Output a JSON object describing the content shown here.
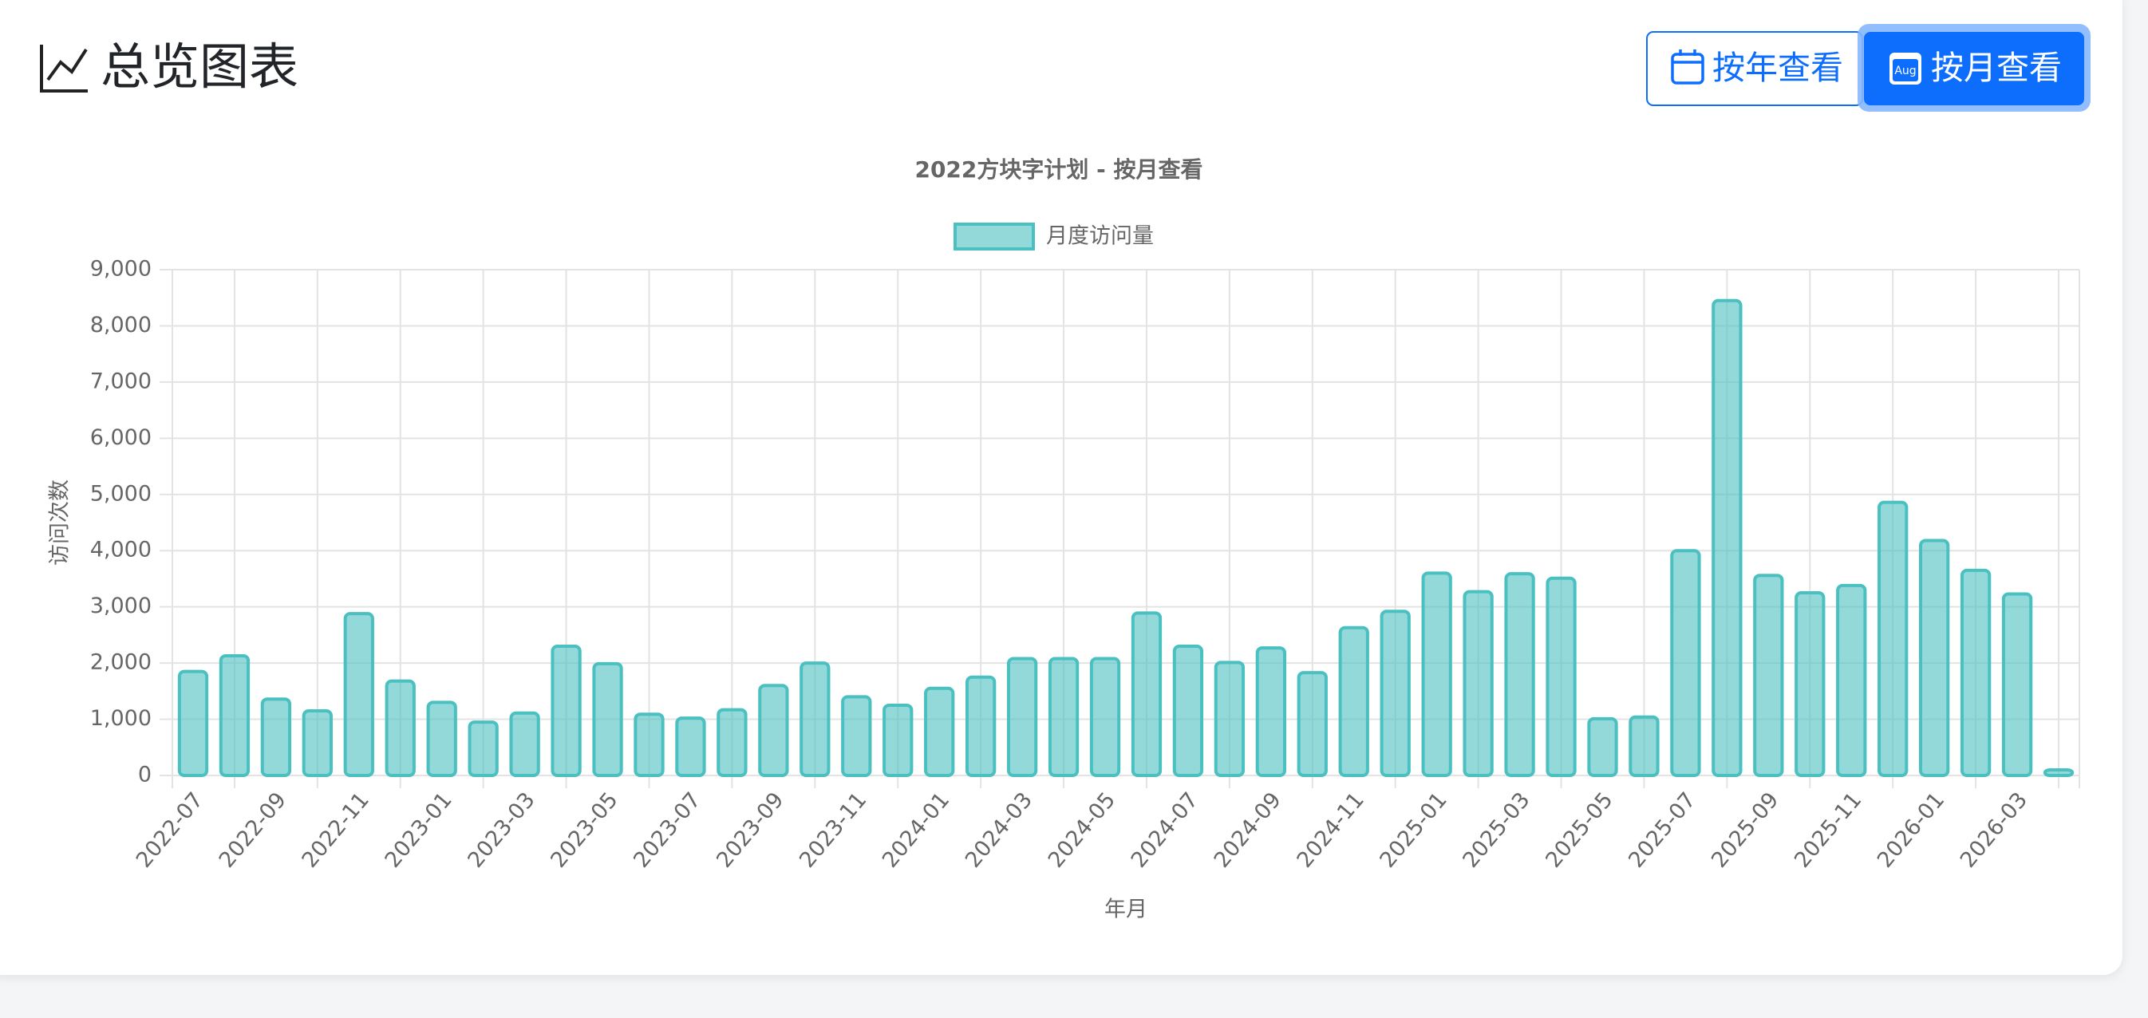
{
  "header": {
    "title": "总览图表",
    "buttons": [
      {
        "label": "按年查看"
      },
      {
        "label": "按月查看",
        "icon_text": "Aug"
      }
    ]
  },
  "chart_data": {
    "type": "bar",
    "title": "2022方块字计划 - 按月查看",
    "x_label": "年月",
    "y_label": "访问次数",
    "categories": [
      "2022-07",
      null,
      "2022-09",
      null,
      "2022-11",
      null,
      "2023-01",
      null,
      "2023-03",
      null,
      "2023-05",
      null,
      "2023-07",
      null,
      "2023-09",
      null,
      "2023-11",
      null,
      "2024-01",
      null,
      "2024-03",
      null,
      "2024-05",
      null,
      "2024-07",
      null,
      "2024-09",
      null,
      "2024-11",
      null,
      "2025-01",
      null,
      "2025-03",
      null,
      "2025-05",
      null,
      "2025-07",
      null,
      "2025-09",
      null,
      "2025-11",
      null,
      "2026-01",
      null,
      "2026-03",
      null
    ],
    "series": [
      {
        "name": "月度访问量",
        "color": "#4bc0c0",
        "values": [
          1850,
          2130,
          1360,
          1150,
          2880,
          1680,
          1300,
          950,
          1110,
          2300,
          1990,
          1090,
          1020,
          1170,
          1600,
          2000,
          1400,
          1250,
          1550,
          1750,
          2080,
          2080,
          2080,
          2890,
          2300,
          2010,
          2270,
          1830,
          2630,
          2920,
          3600,
          3270,
          3590,
          3510,
          1010,
          1040,
          4000,
          8450,
          3560,
          3250,
          3380,
          4860,
          4180,
          3650,
          3230,
          100
        ]
      }
    ],
    "ylim": [
      0,
      9000
    ],
    "yticks": [
      0,
      {
        "value": 1000,
        "label": "1,000"
      },
      {
        "value": 2000,
        "label": "2,000"
      },
      {
        "value": 3000,
        "label": "3,000"
      },
      {
        "value": 4000,
        "label": "4,000"
      },
      {
        "value": 5000,
        "label": "5,000"
      },
      {
        "value": 6000,
        "label": "6,000"
      },
      {
        "value": 7000,
        "label": "7,000"
      },
      {
        "value": 8000,
        "label": "8,000"
      },
      {
        "value": 9000,
        "label": "9,000"
      }
    ],
    "grid": true,
    "legend": "top"
  }
}
